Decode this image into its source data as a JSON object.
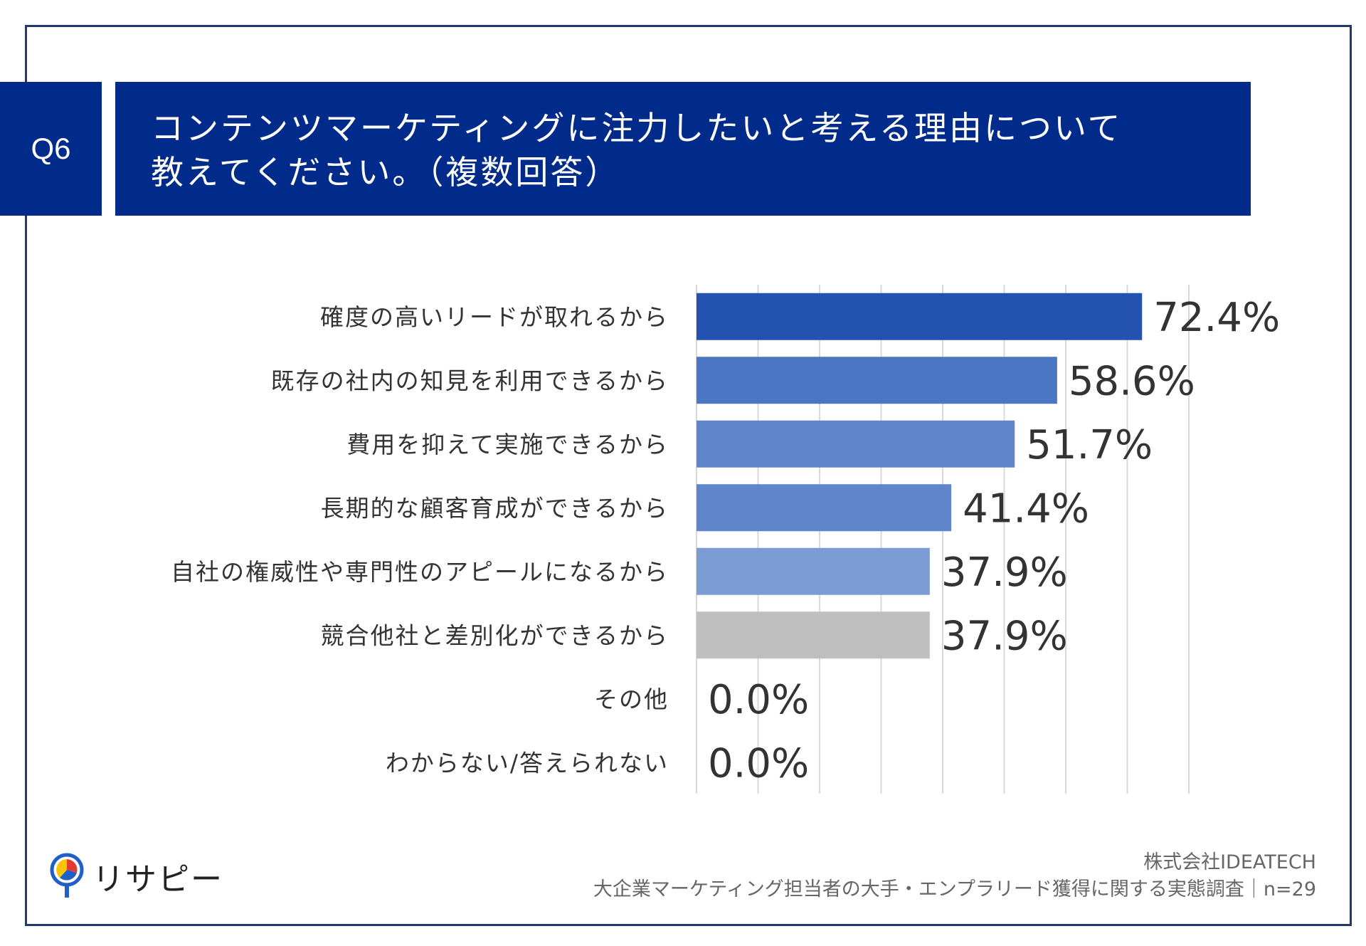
{
  "question": {
    "badge": "Q6",
    "title_line1": "コンテンツマーケティングに注力したいと考える理由について",
    "title_line2": "教えてください。（複数回答）"
  },
  "chart_data": {
    "type": "bar",
    "orientation": "horizontal",
    "categories": [
      "確度の高いリードが取れるから",
      "既存の社内の知見を利用できるから",
      "費用を抑えて実施できるから",
      "長期的な顧客育成ができるから",
      "自社の権威性や専門性のアピールになるから",
      "競合他社と差別化ができるから",
      "その他",
      "わからない/答えられない"
    ],
    "values": [
      72.4,
      58.6,
      51.7,
      41.4,
      37.9,
      37.9,
      0.0,
      0.0
    ],
    "value_labels": [
      "72.4%",
      "58.6%",
      "51.7%",
      "41.4%",
      "37.9%",
      "37.9%",
      "0.0%",
      "0.0%"
    ],
    "colors": [
      "#2352b0",
      "#4a76c4",
      "#5f85cb",
      "#5f85cb",
      "#7b9bd3",
      "#bfbfbf",
      "#bfbfbf",
      "#bfbfbf"
    ],
    "xlim": [
      0,
      80
    ],
    "grid": true
  },
  "logo": {
    "text": "リサピー",
    "icon": "map-pin-pie-icon"
  },
  "footer": {
    "company": "株式会社IDEATECH",
    "survey": "大企業マーケティング担当者の大手・エンプラリード獲得に関する実態調査｜n=29"
  }
}
